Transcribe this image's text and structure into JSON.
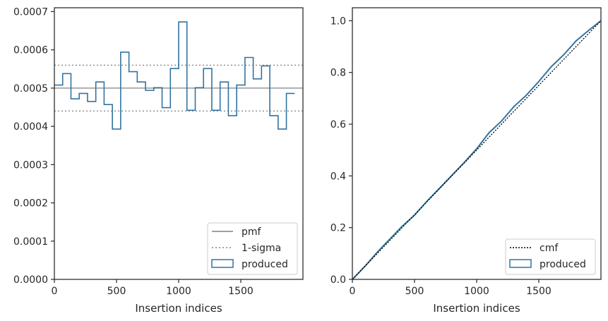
{
  "chart_data": [
    {
      "type": "step-histogram",
      "xlabel": "Insertion indices",
      "ylabel": "",
      "xlim": [
        0,
        2000
      ],
      "ylim": [
        0,
        0.00071
      ],
      "xticks": [
        "0",
        "500",
        "1000",
        "1500"
      ],
      "xtick_values": [
        0,
        500,
        1000,
        1500
      ],
      "yticks": [
        "0.0000",
        "0.0001",
        "0.0002",
        "0.0003",
        "0.0004",
        "0.0005",
        "0.0006",
        "0.0007"
      ],
      "ytick_values": [
        0,
        0.0001,
        0.0002,
        0.0003,
        0.0004,
        0.0005,
        0.0006,
        0.0007
      ],
      "bin_width": 66.67,
      "values": [
        0.000508,
        0.000538,
        0.000472,
        0.000486,
        0.000465,
        0.000516,
        0.000457,
        0.000393,
        0.000594,
        0.000543,
        0.000516,
        0.000494,
        0.000501,
        0.000449,
        0.000551,
        0.000673,
        0.000442,
        0.000501,
        0.000551,
        0.000442,
        0.000516,
        0.000428,
        0.000508,
        0.00058,
        0.000524,
        0.000558,
        0.000428,
        0.000393,
        0.000486
      ],
      "pmf": 0.0005,
      "sigma_upper": 0.00056,
      "sigma_lower": 0.00044,
      "legend": [
        "pmf",
        "1-sigma",
        "produced"
      ],
      "legend_position": "lower-right",
      "colors": {
        "produced": "#3274a1",
        "pmf": "#808080",
        "sigma": "#808080"
      }
    },
    {
      "type": "line",
      "xlabel": "Insertion indices",
      "ylabel": "",
      "xlim": [
        0,
        2000
      ],
      "ylim": [
        0,
        1.05
      ],
      "xticks": [
        "0",
        "500",
        "1000",
        "1500"
      ],
      "xtick_values": [
        0,
        500,
        1000,
        1500
      ],
      "yticks": [
        "0.0",
        "0.2",
        "0.4",
        "0.6",
        "0.8",
        "1.0"
      ],
      "ytick_values": [
        0,
        0.2,
        0.4,
        0.6,
        0.8,
        1.0
      ],
      "cmf": {
        "x": [
          0,
          2000
        ],
        "y": [
          0,
          1.0
        ]
      },
      "produced": {
        "x": [
          0,
          100,
          200,
          300,
          400,
          500,
          600,
          700,
          800,
          900,
          1000,
          1100,
          1200,
          1300,
          1400,
          1500,
          1600,
          1700,
          1800,
          1900,
          2000
        ],
        "y": [
          0,
          0.05,
          0.105,
          0.155,
          0.205,
          0.248,
          0.302,
          0.352,
          0.402,
          0.452,
          0.505,
          0.567,
          0.612,
          0.668,
          0.712,
          0.765,
          0.822,
          0.868,
          0.922,
          0.962,
          1.0
        ]
      },
      "legend": [
        "cmf",
        "produced"
      ],
      "legend_position": "lower-right",
      "colors": {
        "produced": "#3274a1",
        "cmf": "#000000"
      }
    }
  ]
}
